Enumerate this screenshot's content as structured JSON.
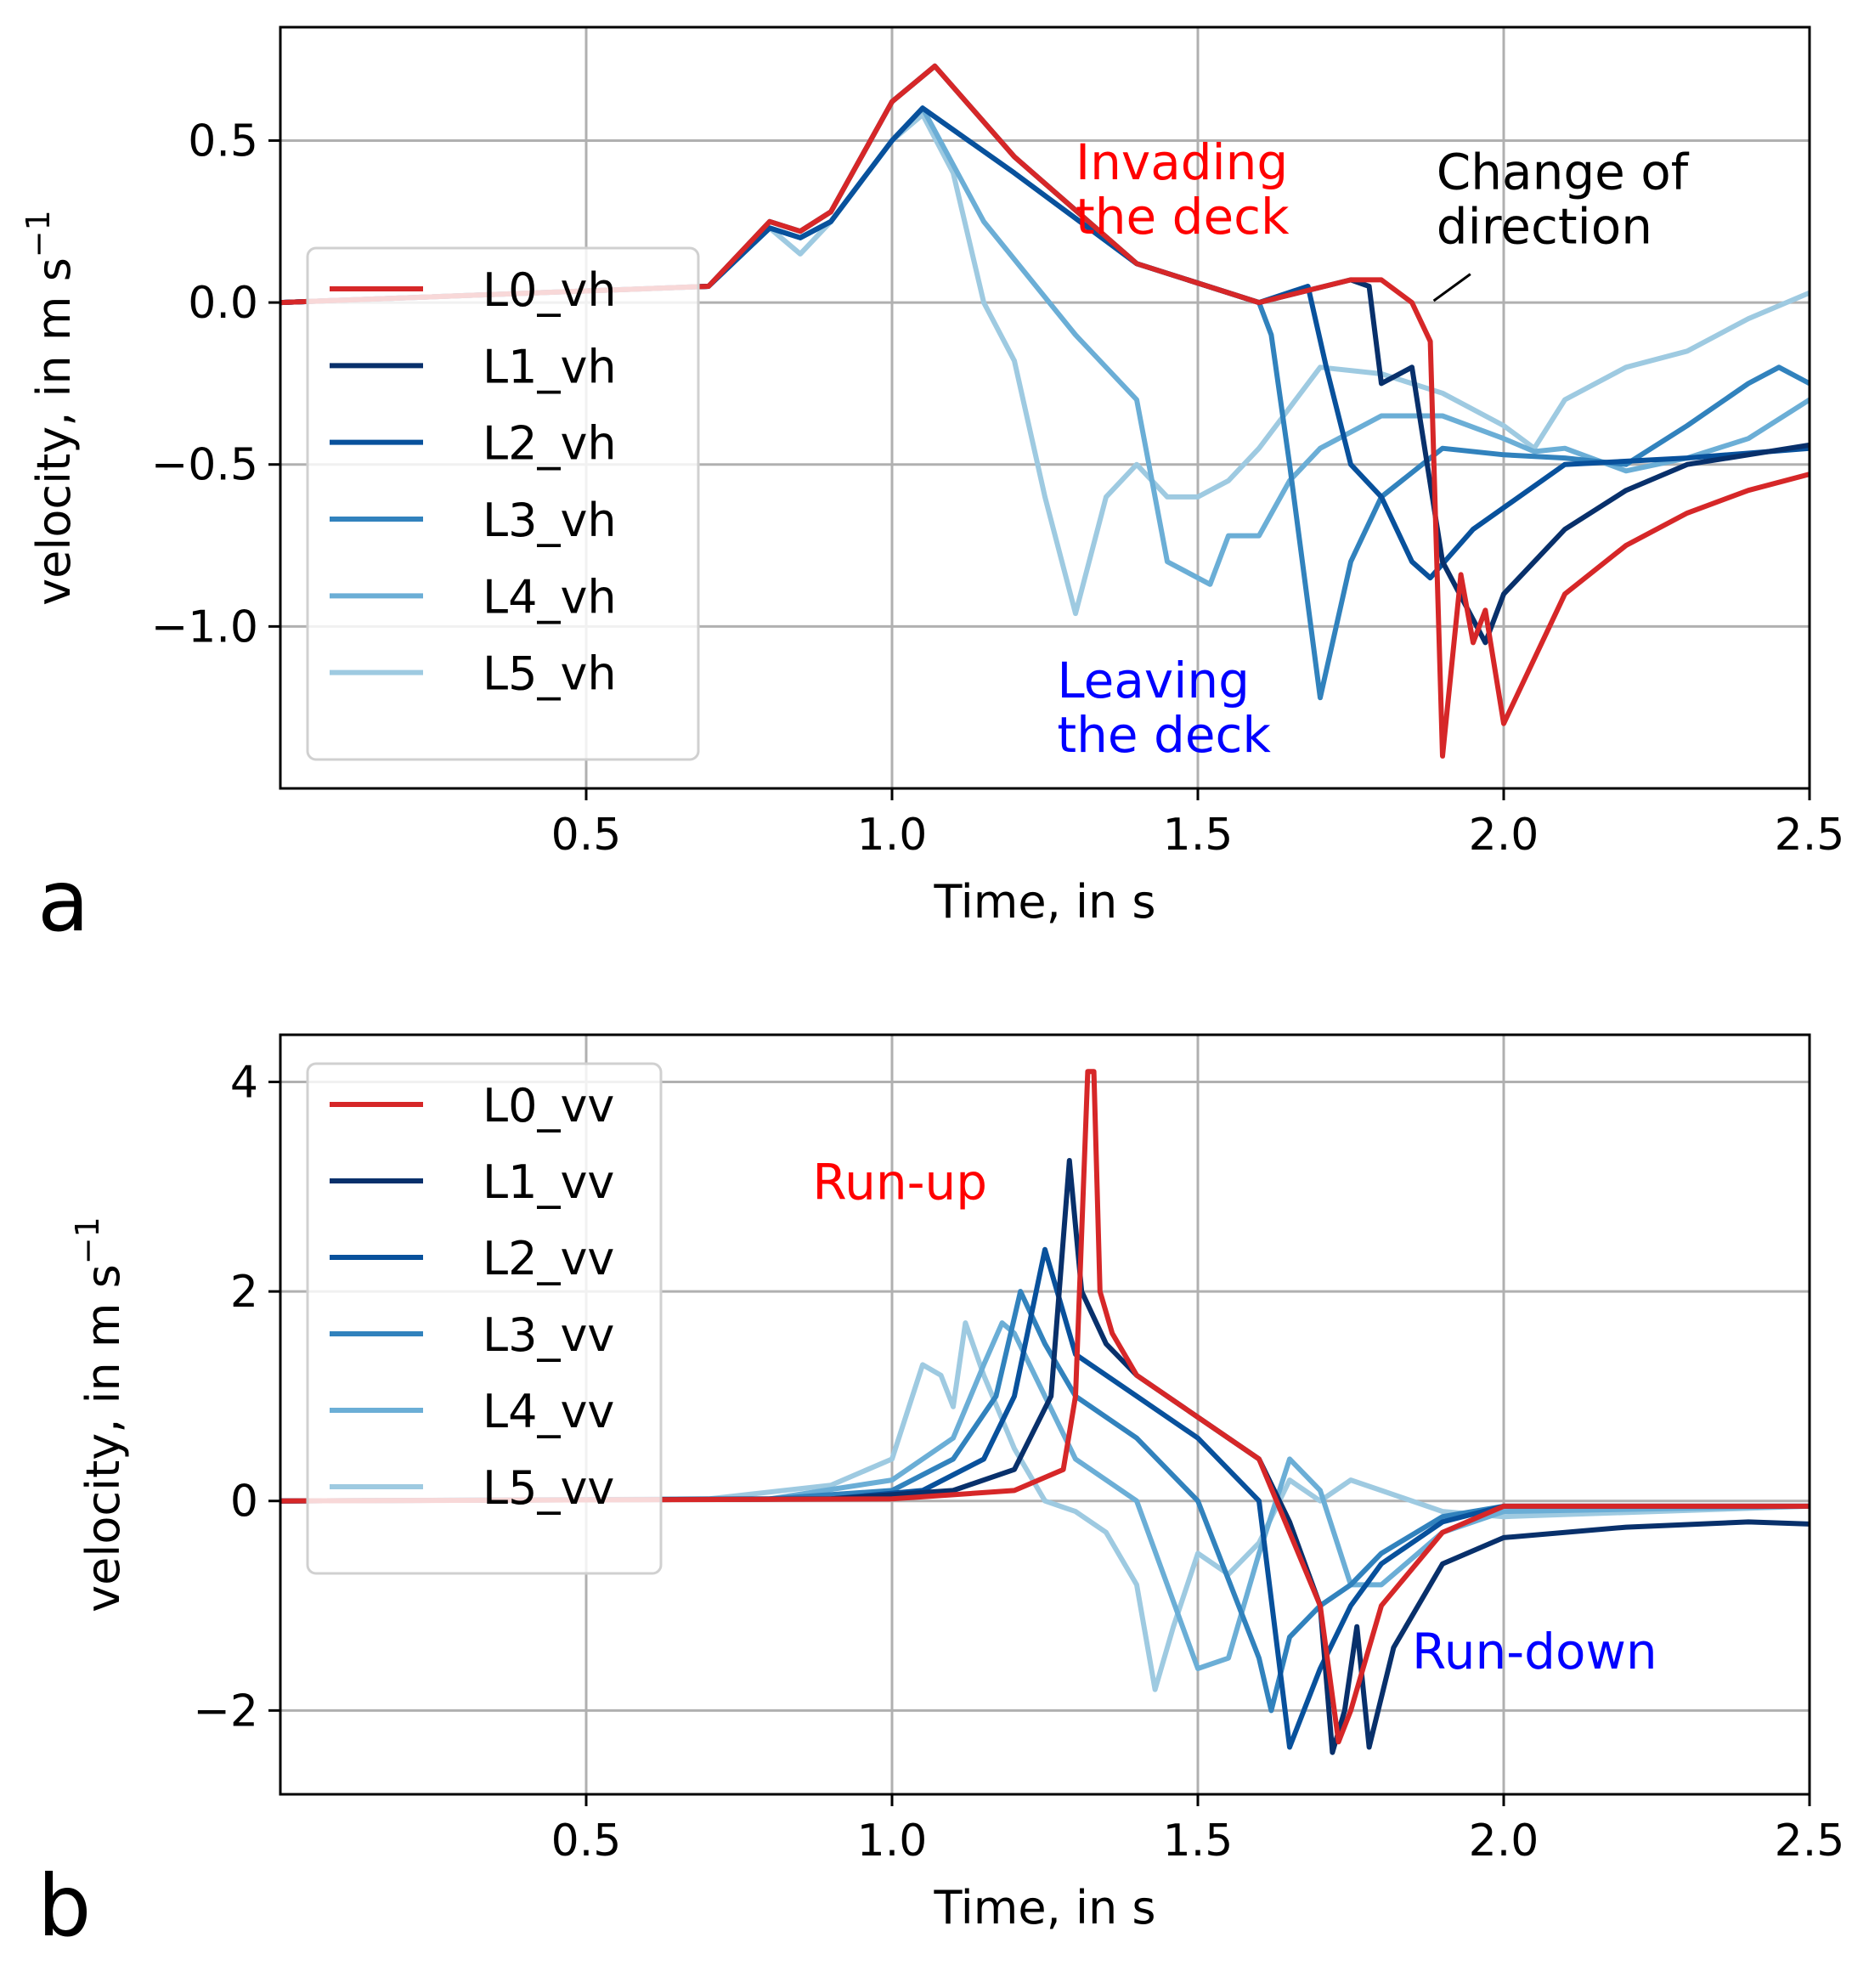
{
  "chart_data": [
    {
      "type": "line",
      "panel_label": "a",
      "xlabel": "Time, in s",
      "ylabel": "velocity, in m s",
      "ylabel_sup": "−1",
      "xlim": [
        0,
        2.5
      ],
      "ylim": [
        -1.5,
        0.85
      ],
      "xticks": [
        0.5,
        1.0,
        1.5,
        2.0,
        2.5
      ],
      "xtick_labels": [
        "0.5",
        "1.0",
        "1.5",
        "2.0",
        "2.5"
      ],
      "yticks": [
        0.5,
        0.0,
        -0.5,
        -1.0
      ],
      "ytick_labels": [
        "0.5",
        "0.0",
        "−0.5",
        "−1.0"
      ],
      "grid": true,
      "legend_position": "left",
      "series": [
        {
          "name": "L0_vh",
          "color": "#d62728",
          "x": [
            0,
            0.7,
            0.8,
            0.85,
            0.9,
            1.0,
            1.07,
            1.2,
            1.4,
            1.6,
            1.75,
            1.8,
            1.85,
            1.88,
            1.9,
            1.93,
            1.95,
            1.97,
            2.0,
            2.1,
            2.2,
            2.3,
            2.4,
            2.5
          ],
          "y": [
            0,
            0.05,
            0.25,
            0.22,
            0.28,
            0.62,
            0.73,
            0.45,
            0.12,
            0.0,
            0.07,
            0.07,
            0.0,
            -0.12,
            -1.4,
            -0.84,
            -1.05,
            -0.95,
            -1.3,
            -0.9,
            -0.75,
            -0.65,
            -0.58,
            -0.53
          ]
        },
        {
          "name": "L1_vh",
          "color": "#08306b",
          "x": [
            0,
            0.7,
            0.8,
            0.85,
            0.9,
            1.0,
            1.07,
            1.2,
            1.4,
            1.6,
            1.75,
            1.78,
            1.8,
            1.85,
            1.9,
            1.97,
            2.0,
            2.1,
            2.2,
            2.3,
            2.4,
            2.5
          ],
          "y": [
            0,
            0.05,
            0.25,
            0.22,
            0.28,
            0.62,
            0.73,
            0.45,
            0.12,
            0.0,
            0.07,
            0.05,
            -0.25,
            -0.2,
            -0.8,
            -1.05,
            -0.9,
            -0.7,
            -0.58,
            -0.5,
            -0.47,
            -0.44
          ]
        },
        {
          "name": "L2_vh",
          "color": "#08519c",
          "x": [
            0,
            0.7,
            0.8,
            0.85,
            0.9,
            1.0,
            1.05,
            1.2,
            1.4,
            1.6,
            1.68,
            1.71,
            1.75,
            1.8,
            1.85,
            1.88,
            1.95,
            2.1,
            2.3,
            2.5
          ],
          "y": [
            0,
            0.05,
            0.23,
            0.2,
            0.25,
            0.5,
            0.6,
            0.4,
            0.12,
            0.0,
            0.05,
            -0.2,
            -0.5,
            -0.6,
            -0.8,
            -0.85,
            -0.7,
            -0.5,
            -0.48,
            -0.45
          ]
        },
        {
          "name": "L3_vh",
          "color": "#3182bd",
          "x": [
            0,
            0.7,
            0.8,
            0.85,
            0.9,
            1.0,
            1.05,
            1.2,
            1.4,
            1.6,
            1.62,
            1.65,
            1.7,
            1.75,
            1.8,
            1.9,
            2.0,
            2.1,
            2.2,
            2.3,
            2.4,
            2.45,
            2.5
          ],
          "y": [
            0,
            0.05,
            0.23,
            0.2,
            0.25,
            0.5,
            0.6,
            0.4,
            0.12,
            0.0,
            -0.1,
            -0.5,
            -1.22,
            -0.8,
            -0.6,
            -0.45,
            -0.47,
            -0.48,
            -0.5,
            -0.38,
            -0.25,
            -0.2,
            -0.25
          ]
        },
        {
          "name": "L4_vh",
          "color": "#6baed6",
          "x": [
            0,
            0.7,
            0.8,
            0.85,
            0.9,
            1.0,
            1.05,
            1.15,
            1.3,
            1.4,
            1.45,
            1.5,
            1.52,
            1.55,
            1.6,
            1.65,
            1.7,
            1.8,
            1.9,
            2.0,
            2.05,
            2.1,
            2.2,
            2.3,
            2.4,
            2.5
          ],
          "y": [
            0,
            0.05,
            0.23,
            0.2,
            0.25,
            0.5,
            0.6,
            0.25,
            -0.1,
            -0.3,
            -0.8,
            -0.85,
            -0.87,
            -0.72,
            -0.72,
            -0.55,
            -0.45,
            -0.35,
            -0.35,
            -0.42,
            -0.46,
            -0.45,
            -0.52,
            -0.48,
            -0.42,
            -0.3
          ]
        },
        {
          "name": "L5_vh",
          "color": "#9ecae1",
          "x": [
            0,
            0.7,
            0.8,
            0.85,
            0.9,
            1.0,
            1.05,
            1.1,
            1.15,
            1.2,
            1.25,
            1.3,
            1.35,
            1.4,
            1.45,
            1.5,
            1.55,
            1.6,
            1.7,
            1.8,
            1.9,
            2.0,
            2.05,
            2.1,
            2.2,
            2.3,
            2.4,
            2.5
          ],
          "y": [
            0,
            0.05,
            0.23,
            0.15,
            0.25,
            0.5,
            0.58,
            0.4,
            0.0,
            -0.18,
            -0.6,
            -0.96,
            -0.6,
            -0.5,
            -0.6,
            -0.6,
            -0.55,
            -0.45,
            -0.2,
            -0.22,
            -0.28,
            -0.38,
            -0.45,
            -0.3,
            -0.2,
            -0.15,
            -0.05,
            0.03
          ]
        }
      ],
      "annotations": [
        {
          "lines": [
            "Invading",
            "the deck"
          ],
          "color": "#ff0000",
          "x": 1.3,
          "y": 0.38
        },
        {
          "lines": [
            "Change of",
            "direction"
          ],
          "color": "#000000",
          "x": 1.89,
          "y": 0.35,
          "arrow_to": [
            1.88,
            0.0
          ]
        },
        {
          "lines": [
            "Leaving",
            "the deck"
          ],
          "color": "#0000ff",
          "x": 1.27,
          "y": -1.22
        }
      ]
    },
    {
      "type": "line",
      "panel_label": "b",
      "xlabel": "Time, in s",
      "ylabel": "velocity, in m s",
      "ylabel_sup": "−1",
      "xlim": [
        0,
        2.5
      ],
      "ylim": [
        -2.8,
        4.45
      ],
      "xticks": [
        0.5,
        1.0,
        1.5,
        2.0,
        2.5
      ],
      "xtick_labels": [
        "0.5",
        "1.0",
        "1.5",
        "2.0",
        "2.5"
      ],
      "yticks": [
        4,
        2,
        0,
        -2
      ],
      "ytick_labels": [
        "4",
        "2",
        "0",
        "−2"
      ],
      "grid": true,
      "legend_position": "top-left",
      "series": [
        {
          "name": "L0_vv",
          "color": "#d62728",
          "x": [
            0,
            1.0,
            1.2,
            1.28,
            1.3,
            1.32,
            1.33,
            1.34,
            1.36,
            1.4,
            1.5,
            1.6,
            1.7,
            1.73,
            1.75,
            1.8,
            1.9,
            2.0,
            2.5
          ],
          "y": [
            0,
            0.02,
            0.1,
            0.3,
            1.0,
            4.1,
            4.1,
            2.0,
            1.6,
            1.2,
            0.8,
            0.4,
            -1.0,
            -2.3,
            -2.0,
            -1.0,
            -0.3,
            -0.05,
            -0.05
          ]
        },
        {
          "name": "L1_vv",
          "color": "#08306b",
          "x": [
            0,
            0.9,
            1.1,
            1.2,
            1.26,
            1.29,
            1.31,
            1.35,
            1.4,
            1.5,
            1.6,
            1.65,
            1.7,
            1.72,
            1.74,
            1.76,
            1.78,
            1.82,
            1.9,
            2.0,
            2.2,
            2.4,
            2.5
          ],
          "y": [
            0,
            0.02,
            0.1,
            0.3,
            1.0,
            3.25,
            2.0,
            1.5,
            1.2,
            0.8,
            0.4,
            -0.2,
            -1.0,
            -2.4,
            -2.0,
            -1.2,
            -2.35,
            -1.4,
            -0.6,
            -0.35,
            -0.25,
            -0.2,
            -0.22
          ]
        },
        {
          "name": "L2_vv",
          "color": "#08519c",
          "x": [
            0,
            0.9,
            1.05,
            1.15,
            1.2,
            1.25,
            1.28,
            1.3,
            1.4,
            1.5,
            1.6,
            1.65,
            1.7,
            1.75,
            1.8,
            1.9,
            2.0,
            2.5
          ],
          "y": [
            0,
            0.02,
            0.1,
            0.4,
            1.0,
            2.4,
            1.8,
            1.4,
            1.0,
            0.6,
            0.0,
            -2.35,
            -1.6,
            -1.0,
            -0.6,
            -0.2,
            -0.05,
            -0.05
          ]
        },
        {
          "name": "L3_vv",
          "color": "#3182bd",
          "x": [
            0,
            0.8,
            1.0,
            1.1,
            1.17,
            1.21,
            1.25,
            1.3,
            1.4,
            1.5,
            1.6,
            1.62,
            1.65,
            1.7,
            1.75,
            1.8,
            1.9,
            2.0,
            2.5
          ],
          "y": [
            0,
            0.02,
            0.1,
            0.4,
            1.0,
            2.0,
            1.5,
            1.0,
            0.6,
            0.0,
            -1.5,
            -2.0,
            -1.3,
            -1.0,
            -0.8,
            -0.5,
            -0.15,
            -0.05,
            -0.05
          ]
        },
        {
          "name": "L4_vv",
          "color": "#6baed6",
          "x": [
            0,
            0.8,
            1.0,
            1.1,
            1.15,
            1.18,
            1.2,
            1.25,
            1.3,
            1.4,
            1.5,
            1.55,
            1.6,
            1.65,
            1.7,
            1.75,
            1.8,
            1.9,
            2.0,
            2.5
          ],
          "y": [
            0,
            0.02,
            0.2,
            0.6,
            1.3,
            1.7,
            1.6,
            1.0,
            0.4,
            0.0,
            -1.6,
            -1.5,
            -0.5,
            0.4,
            0.1,
            -0.8,
            -0.8,
            -0.3,
            -0.1,
            -0.05
          ]
        },
        {
          "name": "L5_vv",
          "color": "#9ecae1",
          "x": [
            0,
            0.7,
            0.9,
            1.0,
            1.05,
            1.08,
            1.1,
            1.12,
            1.15,
            1.2,
            1.25,
            1.3,
            1.35,
            1.4,
            1.43,
            1.46,
            1.5,
            1.55,
            1.6,
            1.65,
            1.7,
            1.75,
            1.8,
            1.9,
            2.0,
            2.5
          ],
          "y": [
            0,
            0.02,
            0.15,
            0.4,
            1.3,
            1.2,
            0.9,
            1.7,
            1.2,
            0.5,
            0.0,
            -0.1,
            -0.3,
            -0.8,
            -1.8,
            -1.2,
            -0.5,
            -0.7,
            -0.4,
            0.2,
            0.0,
            0.2,
            0.1,
            -0.1,
            -0.15,
            -0.05
          ]
        }
      ],
      "annotations": [
        {
          "lines": [
            "Run-up"
          ],
          "color": "#ff0000",
          "x": 0.87,
          "y": 2.88
        },
        {
          "lines": [
            "Run-down"
          ],
          "color": "#0000ff",
          "x": 1.85,
          "y": -1.6
        }
      ]
    }
  ]
}
